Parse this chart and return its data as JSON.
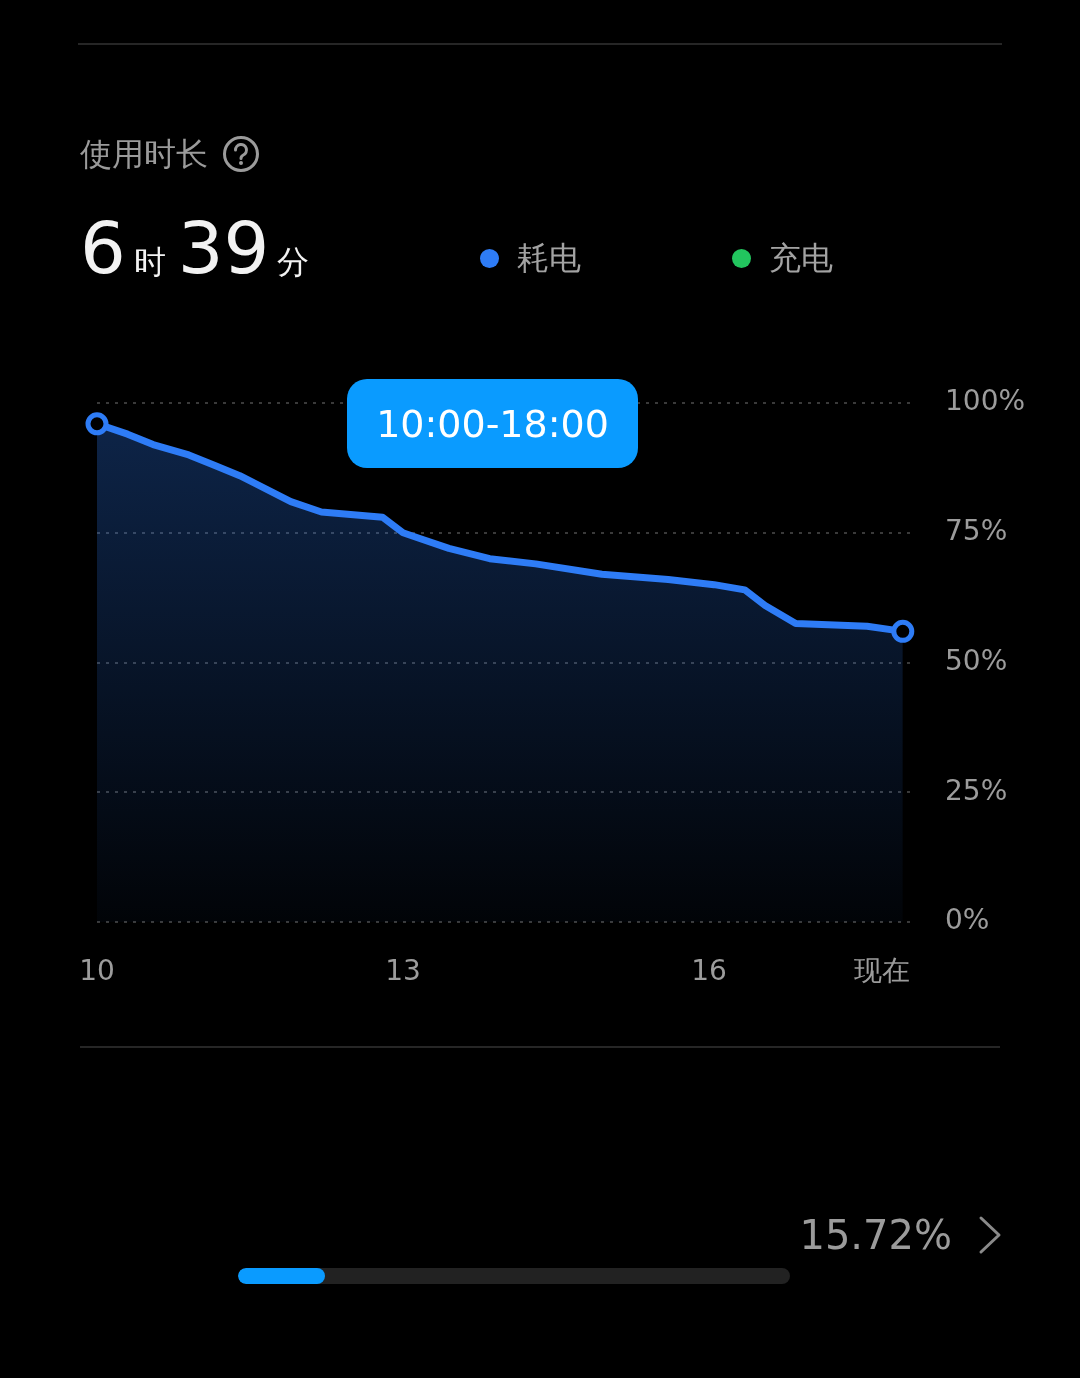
{
  "chart_data": {
    "type": "area",
    "title": "使用时长",
    "subtitle": "6时39分",
    "x": [
      10,
      10.3,
      10.55,
      10.9,
      11.15,
      11.4,
      11.9,
      12.2,
      12.8,
      13.0,
      13.15,
      13.45,
      13.85,
      14.3,
      14.95,
      15.6,
      16.05,
      16.35,
      16.55,
      16.85,
      17.55,
      17.9
    ],
    "series": [
      {
        "name": "耗电",
        "color": "#2e7cf6",
        "values": [
          96,
          94,
          92,
          90,
          88,
          86,
          81,
          79,
          78,
          75,
          74,
          72,
          70,
          69,
          67,
          66,
          65,
          64,
          61,
          57.5,
          57,
          56
        ]
      },
      {
        "name": "充电",
        "color": "#22c55e",
        "values": [
          null,
          null,
          null,
          null,
          null,
          null,
          null,
          null,
          null,
          null,
          null,
          null,
          null,
          null,
          null,
          null,
          null,
          null,
          null,
          null,
          null,
          null
        ]
      },
      {
        "type": "scatter",
        "color": "#2e7cf6",
        "marker": "circle",
        "x": [
          10,
          17.9
        ],
        "values": [
          96,
          56
        ]
      }
    ],
    "xlim": [
      10,
      18
    ],
    "xticks": [
      10,
      13,
      16,
      {
        "value": 17.7,
        "label": "现在"
      }
    ],
    "ylim": [
      0,
      100
    ],
    "yticks": [
      {
        "value": 0,
        "label": "0%"
      },
      {
        "value": 25,
        "label": "25%"
      },
      {
        "value": 50,
        "label": "50%"
      },
      {
        "value": 75,
        "label": "75%"
      },
      {
        "value": 100,
        "label": "100%"
      }
    ],
    "grid": "y",
    "legend": "top",
    "annotations": [
      "10:00-18:00",
      "15.72%"
    ]
  }
}
